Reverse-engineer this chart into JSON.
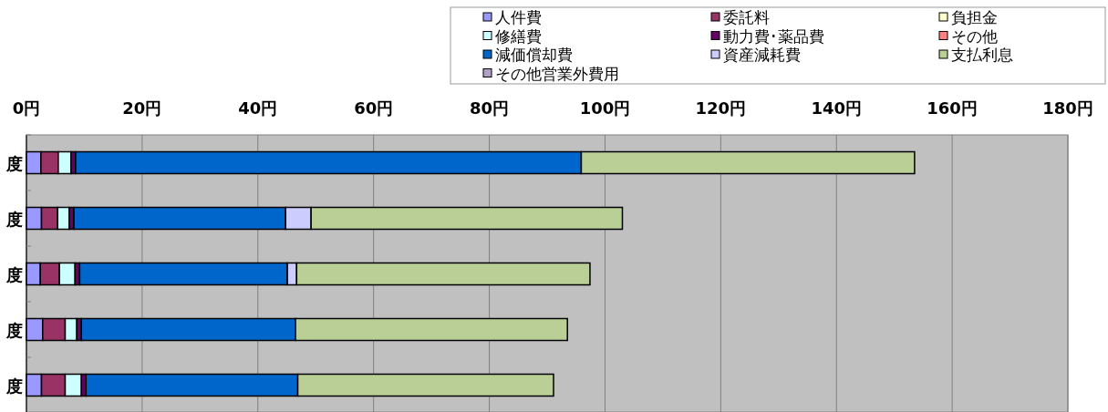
{
  "chart_data": {
    "type": "bar",
    "orientation": "horizontal",
    "stacked": true,
    "categories": [
      "度",
      "度",
      "度",
      "度",
      "度"
    ],
    "series": [
      {
        "name": "人件費",
        "color": "#9999ff",
        "values": [
          2.5,
          2.6,
          2.4,
          2.8,
          2.6
        ]
      },
      {
        "name": "委託料",
        "color": "#993366",
        "values": [
          3.0,
          2.8,
          3.3,
          3.9,
          4.1
        ]
      },
      {
        "name": "負担金",
        "color": "#ffffcc",
        "values": [
          0,
          0,
          0,
          0,
          0
        ]
      },
      {
        "name": "修繕費",
        "color": "#ccffff",
        "values": [
          2.2,
          2.0,
          2.7,
          2.0,
          2.8
        ]
      },
      {
        "name": "動力費･薬品費",
        "color": "#660066",
        "values": [
          0.8,
          0.8,
          0.8,
          0.8,
          0.8
        ]
      },
      {
        "name": "その他",
        "color": "#ff8080",
        "values": [
          0,
          0,
          0,
          0,
          0
        ]
      },
      {
        "name": "減価償却費",
        "color": "#0066cc",
        "values": [
          87.4,
          36.6,
          35.9,
          37.0,
          36.6
        ]
      },
      {
        "name": "資産減耗費",
        "color": "#ccccff",
        "values": [
          0,
          4.4,
          1.6,
          0,
          0
        ]
      },
      {
        "name": "支払利息",
        "color": "#b9cf96",
        "values": [
          57.6,
          53.8,
          50.7,
          47.0,
          44.2
        ]
      },
      {
        "name": "その他営業外費用",
        "color": "#b3a2c7",
        "values": [
          0,
          0,
          0,
          0,
          0
        ]
      }
    ],
    "xlim": [
      0,
      180
    ],
    "xticks": [
      {
        "value": 0,
        "label": "0円"
      },
      {
        "value": 20,
        "label": "20円"
      },
      {
        "value": 40,
        "label": "40円"
      },
      {
        "value": 60,
        "label": "60円"
      },
      {
        "value": 80,
        "label": "80円"
      },
      {
        "value": 100,
        "label": "100円"
      },
      {
        "value": 120,
        "label": "120円"
      },
      {
        "value": 140,
        "label": "140円"
      },
      {
        "value": 160,
        "label": "160円"
      },
      {
        "value": 180,
        "label": "180円"
      }
    ],
    "grid": "x",
    "legend": "top right"
  }
}
